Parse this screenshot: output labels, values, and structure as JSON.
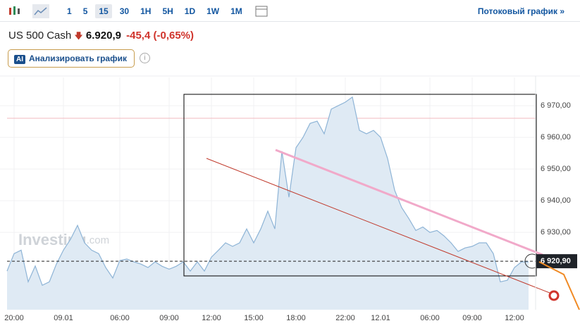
{
  "toolbar": {
    "intervals": [
      {
        "label": "1",
        "active": false
      },
      {
        "label": "5",
        "active": false
      },
      {
        "label": "15",
        "active": true
      },
      {
        "label": "30",
        "active": false
      },
      {
        "label": "1H",
        "active": false
      },
      {
        "label": "5H",
        "active": false
      },
      {
        "label": "1D",
        "active": false
      },
      {
        "label": "1W",
        "active": false
      },
      {
        "label": "1M",
        "active": false
      }
    ],
    "link": "Потоковый график »"
  },
  "quote": {
    "symbol": "US 500 Cash",
    "price": "6.920,9",
    "change": "-45,4",
    "change_pct": "(-0,65%)"
  },
  "ai_button": {
    "badge": "AI",
    "label": "Анализировать график"
  },
  "info": "i",
  "watermark": {
    "brand": "Investing",
    "suffix": ".com"
  },
  "chart_data": {
    "type": "area",
    "color": "#8eb4d6",
    "fill": "#dfeaf4",
    "categories": [
      null,
      "20:00",
      null,
      null,
      null,
      null,
      null,
      null,
      "09.01",
      null,
      null,
      null,
      null,
      null,
      null,
      null,
      "06:00",
      null,
      null,
      null,
      null,
      null,
      null,
      "09:00",
      null,
      null,
      null,
      null,
      null,
      "12:00",
      null,
      null,
      null,
      null,
      null,
      "15:00",
      null,
      null,
      null,
      null,
      null,
      "18:00",
      null,
      null,
      null,
      null,
      null,
      null,
      "22:00",
      null,
      null,
      null,
      null,
      "12.01",
      null,
      null,
      null,
      null,
      null,
      null,
      "06:00",
      null,
      null,
      null,
      null,
      null,
      "09:00",
      null,
      null,
      null,
      null,
      null,
      "12:00",
      null,
      null
    ],
    "values": [
      6917.8,
      6923.3,
      6924.4,
      6914.4,
      6919.4,
      6913.3,
      6914.4,
      6920,
      6924.4,
      6927.8,
      6932.2,
      6926.7,
      6924.4,
      6923.3,
      6918.9,
      6915.6,
      6921.1,
      6921.6,
      6920.7,
      6920,
      6918.9,
      6920.7,
      6919.3,
      6918.4,
      6919.3,
      6920.7,
      6917.8,
      6920.7,
      6917.8,
      6922.2,
      6924.4,
      6926.7,
      6925.6,
      6926.7,
      6931.1,
      6926.7,
      6931.1,
      6936.7,
      6931.1,
      6955.6,
      6941.1,
      6956.7,
      6960,
      6964.4,
      6965.1,
      6961.1,
      6968.9,
      6970,
      6971.1,
      6972.7,
      6962.2,
      6961.1,
      6962.2,
      6960,
      6953.3,
      6943.3,
      6937.8,
      6934.4,
      6930.6,
      6931.7,
      6930,
      6930.6,
      6928.9,
      6926.7,
      6924,
      6925.1,
      6925.6,
      6926.7,
      6926.7,
      6923.3,
      6914.4,
      6914.9,
      6918.9,
      6920.7,
      6920.7
    ],
    "ylim": [
      6905.6,
      6978.9
    ],
    "yticks": [
      {
        "value": 6930,
        "label": "6 930,00"
      },
      {
        "value": 6940,
        "label": "6 940,00"
      },
      {
        "value": 6950,
        "label": "6 950,00"
      },
      {
        "value": 6960,
        "label": "6 960,00"
      },
      {
        "value": 6970,
        "label": "6 970,00"
      }
    ],
    "last_price": {
      "value": 6920.9,
      "label": "6 920,90"
    }
  }
}
